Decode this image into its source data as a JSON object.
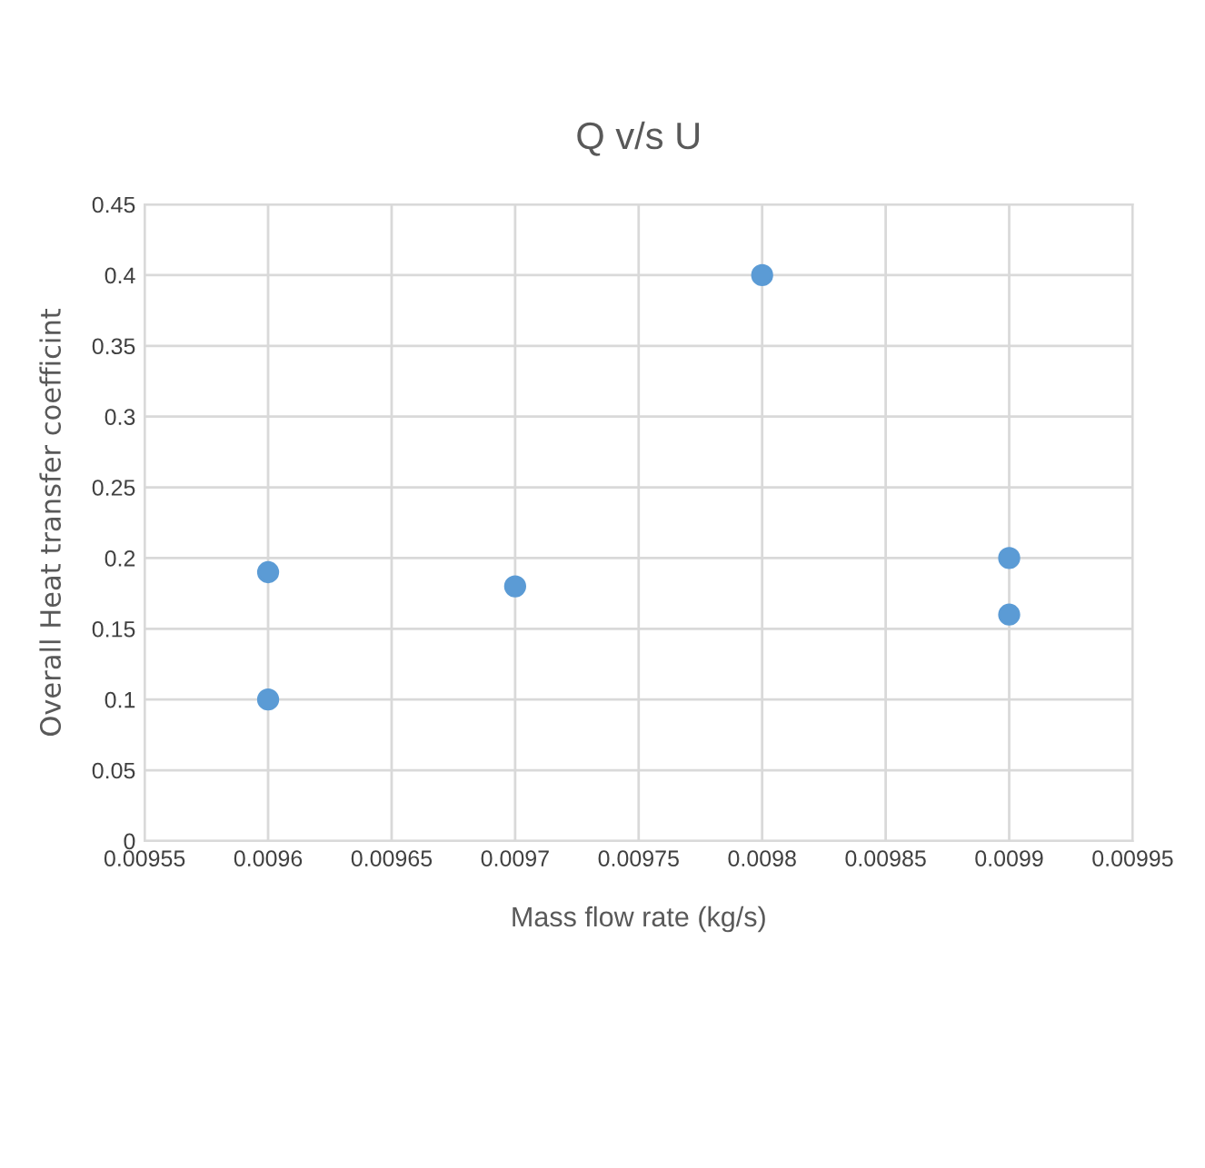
{
  "chart_data": {
    "type": "scatter",
    "title": "Q v/s U",
    "xlabel": "Mass flow rate (kg/s)",
    "ylabel": "Overall Heat transfer coefficint",
    "x": [
      0.0096,
      0.0096,
      0.0097,
      0.0098,
      0.0099,
      0.0099
    ],
    "series": [
      {
        "color": "#5b9bd5",
        "values": [
          0.19,
          0.1,
          0.18,
          0.4,
          0.2,
          0.16
        ]
      }
    ],
    "xlim": [
      0.00955,
      0.00995
    ],
    "xticks": [
      0.00955,
      0.0096,
      0.00965,
      0.0097,
      0.00975,
      0.0098,
      0.00985,
      0.0099,
      0.00995
    ],
    "ylim": [
      0,
      0.45
    ],
    "yticks": [
      0,
      0.05,
      0.1,
      0.15,
      0.2,
      0.25,
      0.3,
      0.35,
      0.4,
      0.45
    ],
    "grid": true,
    "marker": "circle"
  }
}
